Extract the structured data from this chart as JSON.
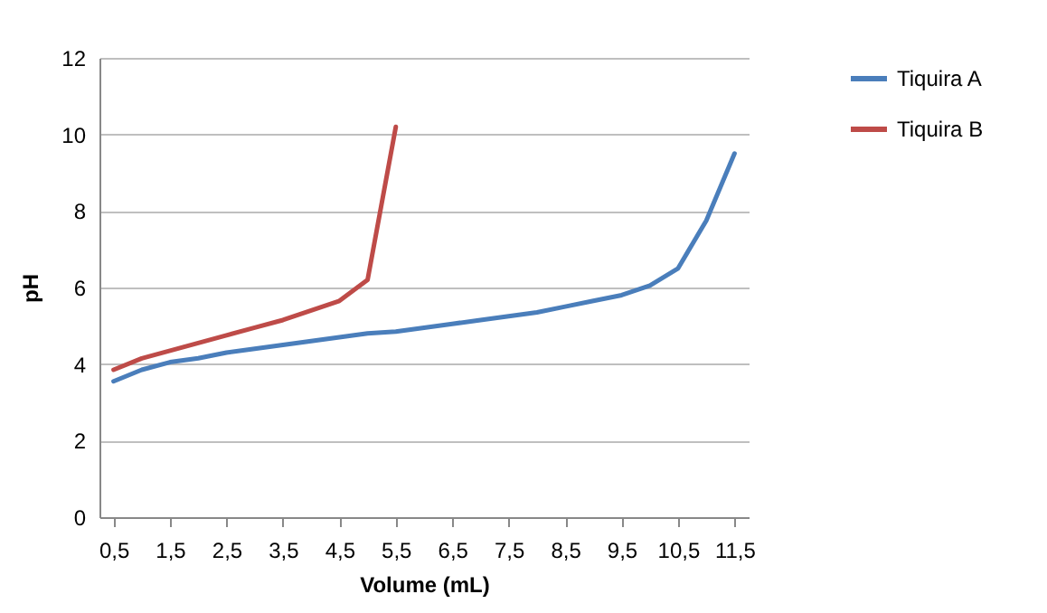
{
  "chart_data": {
    "type": "line",
    "xlabel": "Volume (mL)",
    "ylabel": "pH",
    "x": [
      0.5,
      1.0,
      1.5,
      2.0,
      2.5,
      3.0,
      3.5,
      4.0,
      4.5,
      5.0,
      5.5,
      6.0,
      6.5,
      7.0,
      7.5,
      8.0,
      8.5,
      9.0,
      9.5,
      10.0,
      10.5,
      11.0,
      11.5
    ],
    "series": [
      {
        "name": "Tiquira A",
        "color": "#4a7ebb",
        "values": [
          3.55,
          3.85,
          4.05,
          4.15,
          4.3,
          4.4,
          4.5,
          4.6,
          4.7,
          4.8,
          4.85,
          4.95,
          5.05,
          5.15,
          5.25,
          5.35,
          5.5,
          5.65,
          5.8,
          6.05,
          6.5,
          7.75,
          9.5
        ]
      },
      {
        "name": "Tiquira B",
        "color": "#be4b48",
        "values": [
          3.85,
          4.15,
          4.35,
          4.55,
          4.75,
          4.95,
          5.15,
          5.4,
          5.65,
          6.2,
          10.2,
          null,
          null,
          null,
          null,
          null,
          null,
          null,
          null,
          null,
          null,
          null,
          null
        ]
      }
    ],
    "xlim": [
      0.25,
      11.75
    ],
    "xticks": [
      {
        "value": 0.5,
        "label": "0,5"
      },
      {
        "value": 1.5,
        "label": "1,5"
      },
      {
        "value": 2.5,
        "label": "2,5"
      },
      {
        "value": 3.5,
        "label": "3,5"
      },
      {
        "value": 4.5,
        "label": "4,5"
      },
      {
        "value": 5.5,
        "label": "5,5"
      },
      {
        "value": 6.5,
        "label": "6,5"
      },
      {
        "value": 7.5,
        "label": "7,5"
      },
      {
        "value": 8.5,
        "label": "8,5"
      },
      {
        "value": 9.5,
        "label": "9,5"
      },
      {
        "value": 10.5,
        "label": "10,5"
      },
      {
        "value": 11.5,
        "label": "11,5"
      }
    ],
    "ylim": [
      0,
      12
    ],
    "yticks": [
      0,
      2,
      4,
      6,
      8,
      10,
      12
    ],
    "grid": "y",
    "legend": "right",
    "marker": "none",
    "line_style": "solid"
  }
}
